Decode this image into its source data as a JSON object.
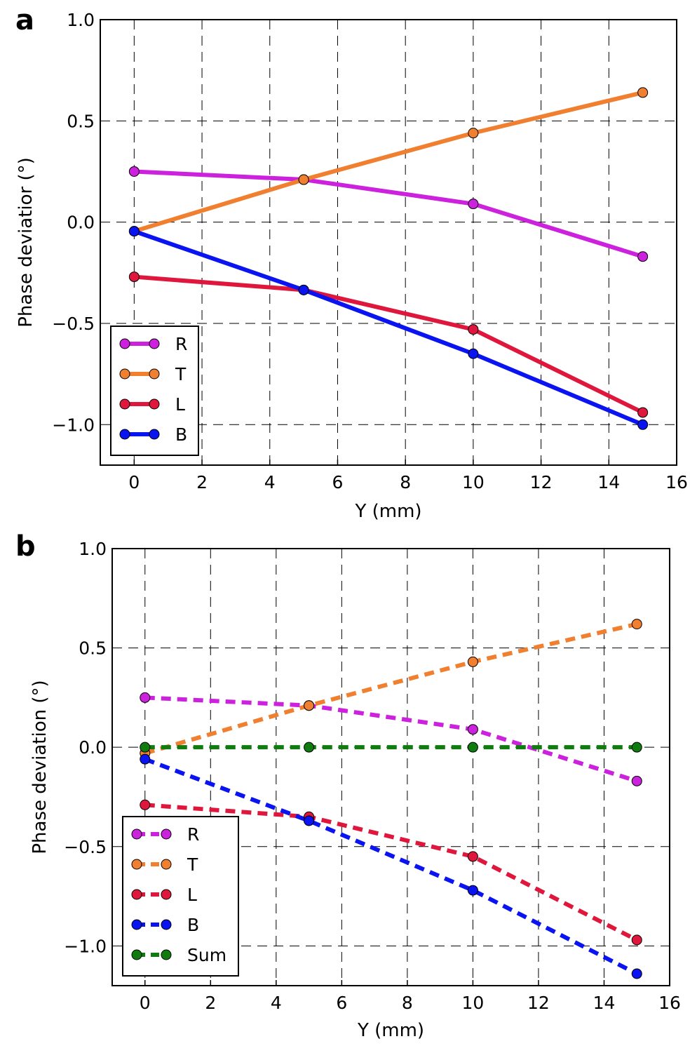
{
  "chart_data": [
    {
      "panel_label": "a",
      "type": "line",
      "xlabel": "Y (mm)",
      "ylabel": "Phase deviatior (°)",
      "xlim": [
        -1,
        16
      ],
      "ylim": [
        -1.2,
        1.0
      ],
      "xticks": [
        0,
        2,
        4,
        6,
        8,
        10,
        12,
        14,
        16
      ],
      "yticks": [
        1.0,
        0.5,
        0.0,
        -0.5,
        -1.0
      ],
      "ytick_labels": [
        "1.0",
        "0.5",
        "0.0",
        "−0.5",
        "−1.0"
      ],
      "grid": true,
      "line_style": "solid",
      "legend_position": "lower-left",
      "x": [
        0,
        5,
        10,
        15
      ],
      "series": [
        {
          "name": "R",
          "color": "#cc22dd",
          "values": [
            0.25,
            0.21,
            0.09,
            -0.17
          ]
        },
        {
          "name": "T",
          "color": "#f07f30",
          "values": [
            -0.045,
            0.21,
            0.44,
            0.64
          ]
        },
        {
          "name": "L",
          "color": "#e0173c",
          "values": [
            -0.27,
            -0.335,
            -0.53,
            -0.94
          ]
        },
        {
          "name": "B",
          "color": "#0a14f0",
          "values": [
            -0.045,
            -0.335,
            -0.65,
            -1.0
          ]
        }
      ]
    },
    {
      "panel_label": "b",
      "type": "line",
      "xlabel": "Y (mm)",
      "ylabel": "Phase deviation (°)",
      "xlim": [
        -1,
        16
      ],
      "ylim": [
        -1.2,
        1.0
      ],
      "xticks": [
        0,
        2,
        4,
        6,
        8,
        10,
        12,
        14,
        16
      ],
      "yticks": [
        1.0,
        0.5,
        0.0,
        -0.5,
        -1.0
      ],
      "ytick_labels": [
        "1.0",
        "0.5",
        "0.0",
        "−0.5",
        "−1.0"
      ],
      "grid": true,
      "line_style": "dashed",
      "legend_position": "lower-left",
      "x": [
        0,
        5,
        10,
        15
      ],
      "series": [
        {
          "name": "R",
          "color": "#cc22dd",
          "values": [
            0.25,
            0.21,
            0.09,
            -0.17
          ]
        },
        {
          "name": "T",
          "color": "#f07f30",
          "values": [
            -0.03,
            0.21,
            0.43,
            0.62
          ]
        },
        {
          "name": "L",
          "color": "#e0173c",
          "values": [
            -0.29,
            -0.35,
            -0.55,
            -0.97
          ]
        },
        {
          "name": "B",
          "color": "#0a14f0",
          "values": [
            -0.06,
            -0.37,
            -0.72,
            -1.14
          ]
        },
        {
          "name": "Sum",
          "color": "#107c10",
          "values": [
            0.0,
            0.0,
            0.0,
            0.0
          ]
        }
      ]
    }
  ]
}
